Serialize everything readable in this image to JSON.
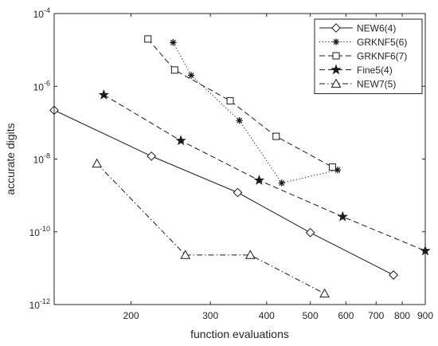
{
  "chart_data": {
    "type": "line",
    "title": "",
    "xlabel": "function evaluations",
    "ylabel": "accurate digits",
    "xscale": "log",
    "yscale": "log",
    "xlim": [
      135,
      900
    ],
    "ylim": [
      1e-12,
      0.0001
    ],
    "x_ticks": [
      {
        "value": 200,
        "label": "200"
      },
      {
        "value": 300,
        "label": "300"
      },
      {
        "value": 400,
        "label": "400"
      },
      {
        "value": 500,
        "label": "500"
      },
      {
        "value": 600,
        "label": "600"
      },
      {
        "value": 700,
        "label": "700"
      },
      {
        "value": 800,
        "label": "800"
      },
      {
        "value": 900,
        "label": "900"
      }
    ],
    "y_ticks": [
      {
        "value": 1e-12,
        "base": "10",
        "exp": "-12"
      },
      {
        "value": 1e-10,
        "base": "10",
        "exp": "-10"
      },
      {
        "value": 1e-08,
        "base": "10",
        "exp": "-8"
      },
      {
        "value": 1e-06,
        "base": "10",
        "exp": "-6"
      },
      {
        "value": 0.0001,
        "base": "10",
        "exp": "-4"
      }
    ],
    "grid": false,
    "legend_position": "top-right",
    "series": [
      {
        "name": "NEW6(4)",
        "line": "solid",
        "marker": "diamond",
        "x": [
          135,
          222,
          345,
          500,
          765
        ],
        "y": [
          2.2e-07,
          1.2e-08,
          1.2e-09,
          9.5e-11,
          6.5e-12
        ]
      },
      {
        "name": "GRKNF5(6)",
        "line": "dotted",
        "marker": "asterisk",
        "x": [
          248,
          272,
          348,
          432,
          575
        ],
        "y": [
          1.6e-05,
          2e-06,
          1.15e-07,
          2.2e-09,
          5e-09
        ]
      },
      {
        "name": "GRKNF6(7)",
        "line": "dashed",
        "marker": "square",
        "x": [
          218,
          250,
          332,
          420,
          560
        ],
        "y": [
          2e-05,
          2.8e-06,
          4e-07,
          4.2e-08,
          6e-09
        ]
      },
      {
        "name": "Fine5(4)",
        "line": "dashed",
        "marker": "pentagram",
        "x": [
          174,
          258,
          385,
          590,
          900
        ],
        "y": [
          5.8e-07,
          3.2e-08,
          2.6e-09,
          2.6e-10,
          3e-11
        ]
      },
      {
        "name": "NEW7(5)",
        "line": "dashdot",
        "marker": "triangle",
        "x": [
          168,
          264,
          368,
          538
        ],
        "y": [
          7.5e-09,
          2.3e-11,
          2.3e-11,
          2e-12
        ]
      }
    ]
  }
}
